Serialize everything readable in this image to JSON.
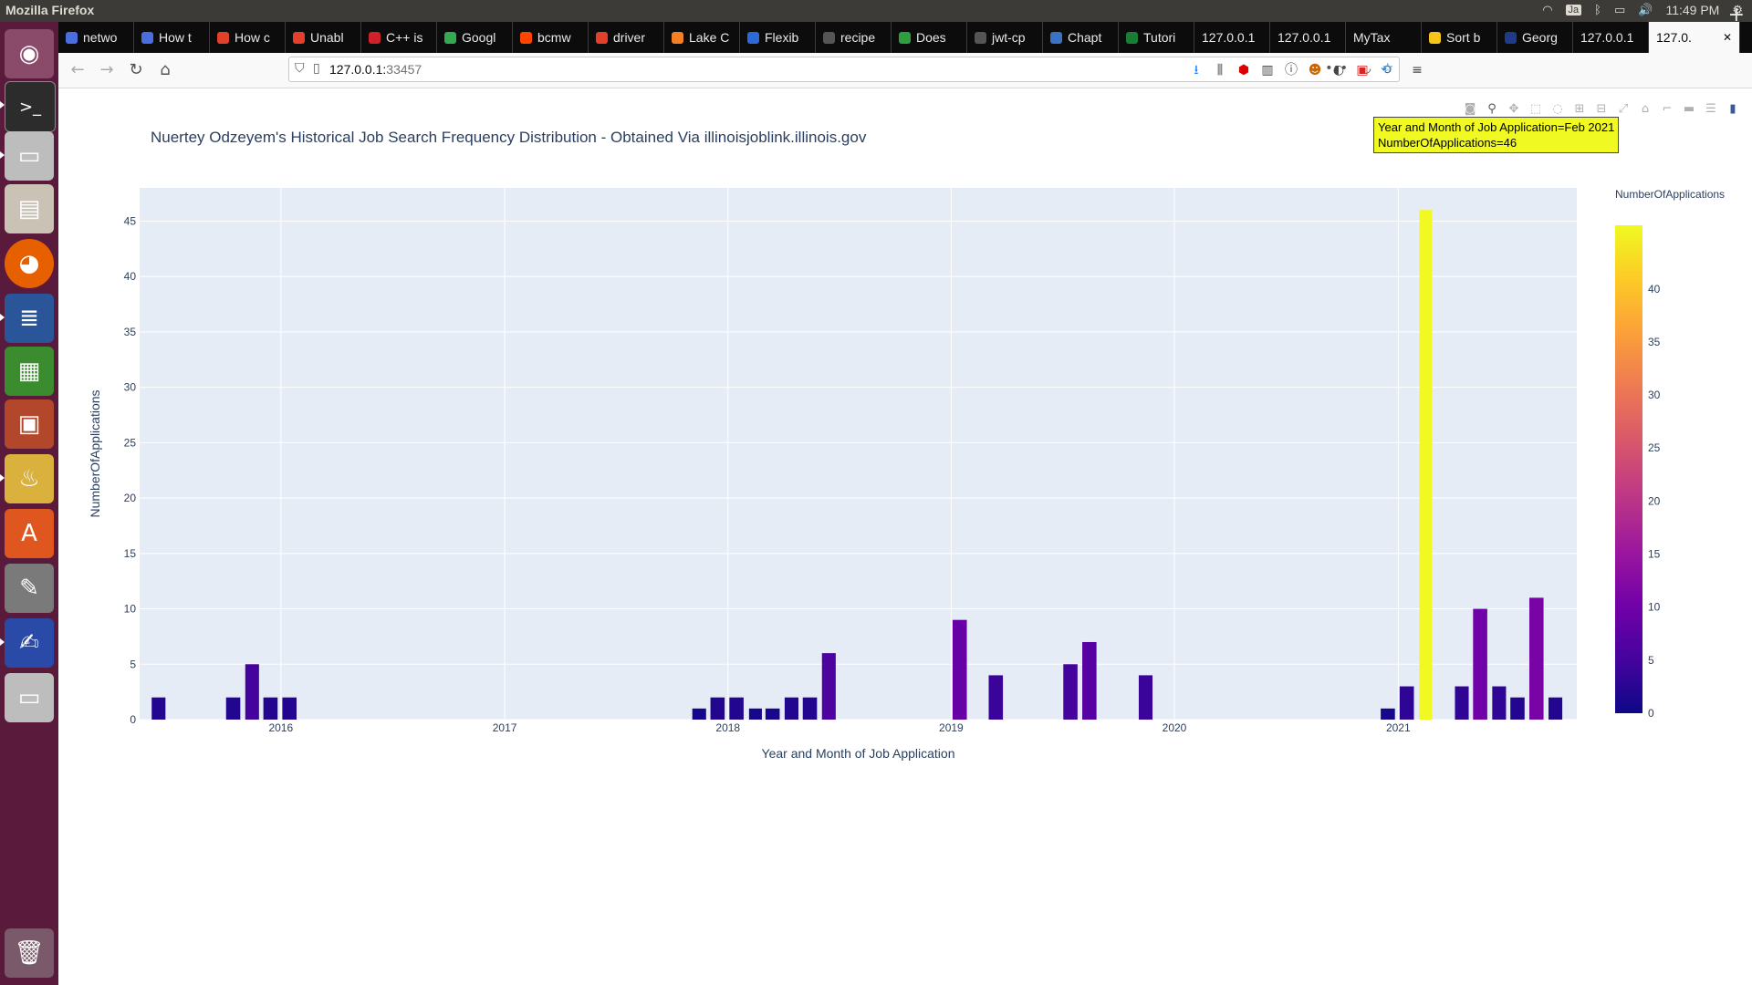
{
  "system": {
    "window_title": "Mozilla Firefox",
    "keyboard_layout": "Ja",
    "clock": "11:49 PM"
  },
  "tabs": [
    {
      "label": "netwo",
      "color": "#4a6ee0"
    },
    {
      "label": "How t",
      "color": "#4a6ee0"
    },
    {
      "label": "How c",
      "color": "#e2402a"
    },
    {
      "label": "Unabl",
      "color": "#e2402a"
    },
    {
      "label": "C++ is",
      "color": "#d0202a"
    },
    {
      "label": "Googl",
      "color": "#34a853"
    },
    {
      "label": "bcmw",
      "color": "#ff4500"
    },
    {
      "label": "driver",
      "color": "#e2402a"
    },
    {
      "label": "Lake C",
      "color": "#f48024"
    },
    {
      "label": "Flexib",
      "color": "#2d6ad8"
    },
    {
      "label": "recipe",
      "color": "#555555"
    },
    {
      "label": "Does",
      "color": "#2e9e3e"
    },
    {
      "label": "jwt-cp",
      "color": "#555555"
    },
    {
      "label": "Chapt",
      "color": "#3b72c4"
    },
    {
      "label": "Tutori",
      "color": "#1a7d36"
    },
    {
      "label": "127.0.0.1",
      "color": ""
    },
    {
      "label": "127.0.0.1",
      "color": ""
    },
    {
      "label": "MyTax",
      "color": ""
    },
    {
      "label": "Sort b",
      "color": "#f5c518"
    },
    {
      "label": "Georg",
      "color": "#1e3a8a"
    },
    {
      "label": "127.0.0.1",
      "color": ""
    },
    {
      "label": "127.0.",
      "color": "",
      "active": true
    }
  ],
  "url": {
    "host": "127.0.0.1:",
    "port": "33457"
  },
  "chart_data": {
    "type": "bar",
    "title": "Nuertey Odzeyem's Historical Job Search Frequency Distribution - Obtained Via illinoisjoblink.illinois.gov",
    "xlabel": "Year and Month of Job Application",
    "ylabel": "NumberOfApplications",
    "colorbar_title": "NumberOfApplications",
    "colorscale": "plasma",
    "x_ticks": [
      "2016",
      "2017",
      "2018",
      "2019",
      "2020",
      "2021"
    ],
    "y_ticks": [
      0,
      5,
      10,
      15,
      20,
      25,
      30,
      35,
      40,
      45
    ],
    "colorbar_ticks": [
      0,
      5,
      10,
      15,
      20,
      25,
      30,
      35,
      40
    ],
    "ylim": [
      0,
      48
    ],
    "x_range": [
      "2015-05-15",
      "2021-10-20"
    ],
    "grid": true,
    "points": [
      {
        "x": "2015-06",
        "y": 2
      },
      {
        "x": "2015-10",
        "y": 2
      },
      {
        "x": "2015-11",
        "y": 5
      },
      {
        "x": "2015-12",
        "y": 2
      },
      {
        "x": "2016-01",
        "y": 2
      },
      {
        "x": "2017-11",
        "y": 1
      },
      {
        "x": "2017-12",
        "y": 2
      },
      {
        "x": "2018-01",
        "y": 2
      },
      {
        "x": "2018-02",
        "y": 1
      },
      {
        "x": "2018-03",
        "y": 1
      },
      {
        "x": "2018-04",
        "y": 2
      },
      {
        "x": "2018-05",
        "y": 2
      },
      {
        "x": "2018-06",
        "y": 6
      },
      {
        "x": "2019-01",
        "y": 9
      },
      {
        "x": "2019-03",
        "y": 4
      },
      {
        "x": "2019-07",
        "y": 5
      },
      {
        "x": "2019-08",
        "y": 7
      },
      {
        "x": "2019-11",
        "y": 4
      },
      {
        "x": "2020-12",
        "y": 1
      },
      {
        "x": "2021-01",
        "y": 3
      },
      {
        "x": "2021-02",
        "y": 46
      },
      {
        "x": "2021-04",
        "y": 3
      },
      {
        "x": "2021-05",
        "y": 10
      },
      {
        "x": "2021-06",
        "y": 3
      },
      {
        "x": "2021-07",
        "y": 2
      },
      {
        "x": "2021-08",
        "y": 11
      },
      {
        "x": "2021-09",
        "y": 2
      }
    ],
    "tooltip": {
      "line1": "Year and Month of Job Application=Feb 2021",
      "line2": "NumberOfApplications=46"
    }
  }
}
